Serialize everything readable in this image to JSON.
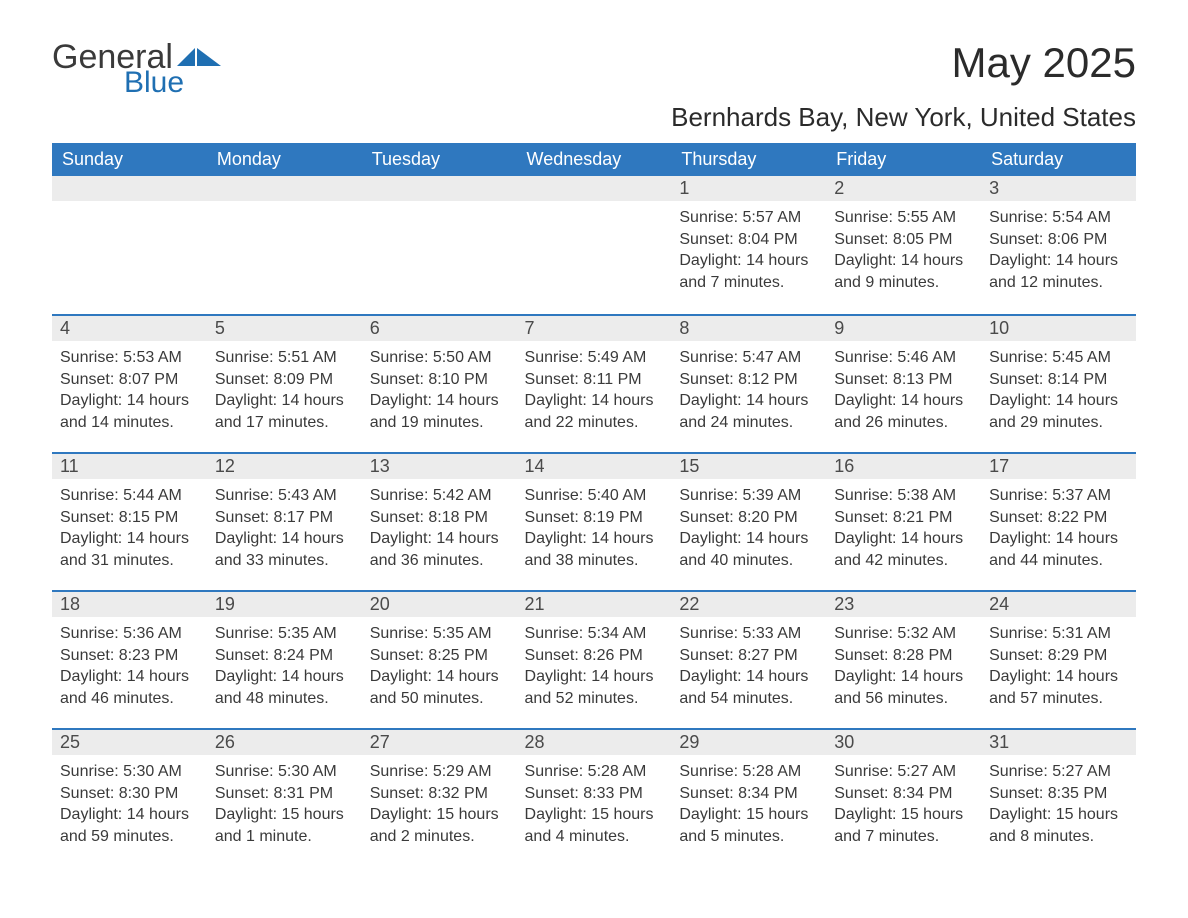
{
  "brand": {
    "general": "General",
    "blue": "Blue"
  },
  "title": "May 2025",
  "location": "Bernhards Bay, New York, United States",
  "colors": {
    "header_bg": "#2f78bf",
    "header_text": "#ffffff",
    "daynum_bg": "#ececec",
    "text": "#3a3a3a",
    "rule": "#2f78bf",
    "logo_blue": "#1f6fb2"
  },
  "dayNames": [
    "Sunday",
    "Monday",
    "Tuesday",
    "Wednesday",
    "Thursday",
    "Friday",
    "Saturday"
  ],
  "weeks": [
    [
      null,
      null,
      null,
      null,
      {
        "n": "1",
        "sr": "Sunrise: 5:57 AM",
        "ss": "Sunset: 8:04 PM",
        "dl": "Daylight: 14 hours and 7 minutes."
      },
      {
        "n": "2",
        "sr": "Sunrise: 5:55 AM",
        "ss": "Sunset: 8:05 PM",
        "dl": "Daylight: 14 hours and 9 minutes."
      },
      {
        "n": "3",
        "sr": "Sunrise: 5:54 AM",
        "ss": "Sunset: 8:06 PM",
        "dl": "Daylight: 14 hours and 12 minutes."
      }
    ],
    [
      {
        "n": "4",
        "sr": "Sunrise: 5:53 AM",
        "ss": "Sunset: 8:07 PM",
        "dl": "Daylight: 14 hours and 14 minutes."
      },
      {
        "n": "5",
        "sr": "Sunrise: 5:51 AM",
        "ss": "Sunset: 8:09 PM",
        "dl": "Daylight: 14 hours and 17 minutes."
      },
      {
        "n": "6",
        "sr": "Sunrise: 5:50 AM",
        "ss": "Sunset: 8:10 PM",
        "dl": "Daylight: 14 hours and 19 minutes."
      },
      {
        "n": "7",
        "sr": "Sunrise: 5:49 AM",
        "ss": "Sunset: 8:11 PM",
        "dl": "Daylight: 14 hours and 22 minutes."
      },
      {
        "n": "8",
        "sr": "Sunrise: 5:47 AM",
        "ss": "Sunset: 8:12 PM",
        "dl": "Daylight: 14 hours and 24 minutes."
      },
      {
        "n": "9",
        "sr": "Sunrise: 5:46 AM",
        "ss": "Sunset: 8:13 PM",
        "dl": "Daylight: 14 hours and 26 minutes."
      },
      {
        "n": "10",
        "sr": "Sunrise: 5:45 AM",
        "ss": "Sunset: 8:14 PM",
        "dl": "Daylight: 14 hours and 29 minutes."
      }
    ],
    [
      {
        "n": "11",
        "sr": "Sunrise: 5:44 AM",
        "ss": "Sunset: 8:15 PM",
        "dl": "Daylight: 14 hours and 31 minutes."
      },
      {
        "n": "12",
        "sr": "Sunrise: 5:43 AM",
        "ss": "Sunset: 8:17 PM",
        "dl": "Daylight: 14 hours and 33 minutes."
      },
      {
        "n": "13",
        "sr": "Sunrise: 5:42 AM",
        "ss": "Sunset: 8:18 PM",
        "dl": "Daylight: 14 hours and 36 minutes."
      },
      {
        "n": "14",
        "sr": "Sunrise: 5:40 AM",
        "ss": "Sunset: 8:19 PM",
        "dl": "Daylight: 14 hours and 38 minutes."
      },
      {
        "n": "15",
        "sr": "Sunrise: 5:39 AM",
        "ss": "Sunset: 8:20 PM",
        "dl": "Daylight: 14 hours and 40 minutes."
      },
      {
        "n": "16",
        "sr": "Sunrise: 5:38 AM",
        "ss": "Sunset: 8:21 PM",
        "dl": "Daylight: 14 hours and 42 minutes."
      },
      {
        "n": "17",
        "sr": "Sunrise: 5:37 AM",
        "ss": "Sunset: 8:22 PM",
        "dl": "Daylight: 14 hours and 44 minutes."
      }
    ],
    [
      {
        "n": "18",
        "sr": "Sunrise: 5:36 AM",
        "ss": "Sunset: 8:23 PM",
        "dl": "Daylight: 14 hours and 46 minutes."
      },
      {
        "n": "19",
        "sr": "Sunrise: 5:35 AM",
        "ss": "Sunset: 8:24 PM",
        "dl": "Daylight: 14 hours and 48 minutes."
      },
      {
        "n": "20",
        "sr": "Sunrise: 5:35 AM",
        "ss": "Sunset: 8:25 PM",
        "dl": "Daylight: 14 hours and 50 minutes."
      },
      {
        "n": "21",
        "sr": "Sunrise: 5:34 AM",
        "ss": "Sunset: 8:26 PM",
        "dl": "Daylight: 14 hours and 52 minutes."
      },
      {
        "n": "22",
        "sr": "Sunrise: 5:33 AM",
        "ss": "Sunset: 8:27 PM",
        "dl": "Daylight: 14 hours and 54 minutes."
      },
      {
        "n": "23",
        "sr": "Sunrise: 5:32 AM",
        "ss": "Sunset: 8:28 PM",
        "dl": "Daylight: 14 hours and 56 minutes."
      },
      {
        "n": "24",
        "sr": "Sunrise: 5:31 AM",
        "ss": "Sunset: 8:29 PM",
        "dl": "Daylight: 14 hours and 57 minutes."
      }
    ],
    [
      {
        "n": "25",
        "sr": "Sunrise: 5:30 AM",
        "ss": "Sunset: 8:30 PM",
        "dl": "Daylight: 14 hours and 59 minutes."
      },
      {
        "n": "26",
        "sr": "Sunrise: 5:30 AM",
        "ss": "Sunset: 8:31 PM",
        "dl": "Daylight: 15 hours and 1 minute."
      },
      {
        "n": "27",
        "sr": "Sunrise: 5:29 AM",
        "ss": "Sunset: 8:32 PM",
        "dl": "Daylight: 15 hours and 2 minutes."
      },
      {
        "n": "28",
        "sr": "Sunrise: 5:28 AM",
        "ss": "Sunset: 8:33 PM",
        "dl": "Daylight: 15 hours and 4 minutes."
      },
      {
        "n": "29",
        "sr": "Sunrise: 5:28 AM",
        "ss": "Sunset: 8:34 PM",
        "dl": "Daylight: 15 hours and 5 minutes."
      },
      {
        "n": "30",
        "sr": "Sunrise: 5:27 AM",
        "ss": "Sunset: 8:34 PM",
        "dl": "Daylight: 15 hours and 7 minutes."
      },
      {
        "n": "31",
        "sr": "Sunrise: 5:27 AM",
        "ss": "Sunset: 8:35 PM",
        "dl": "Daylight: 15 hours and 8 minutes."
      }
    ]
  ]
}
